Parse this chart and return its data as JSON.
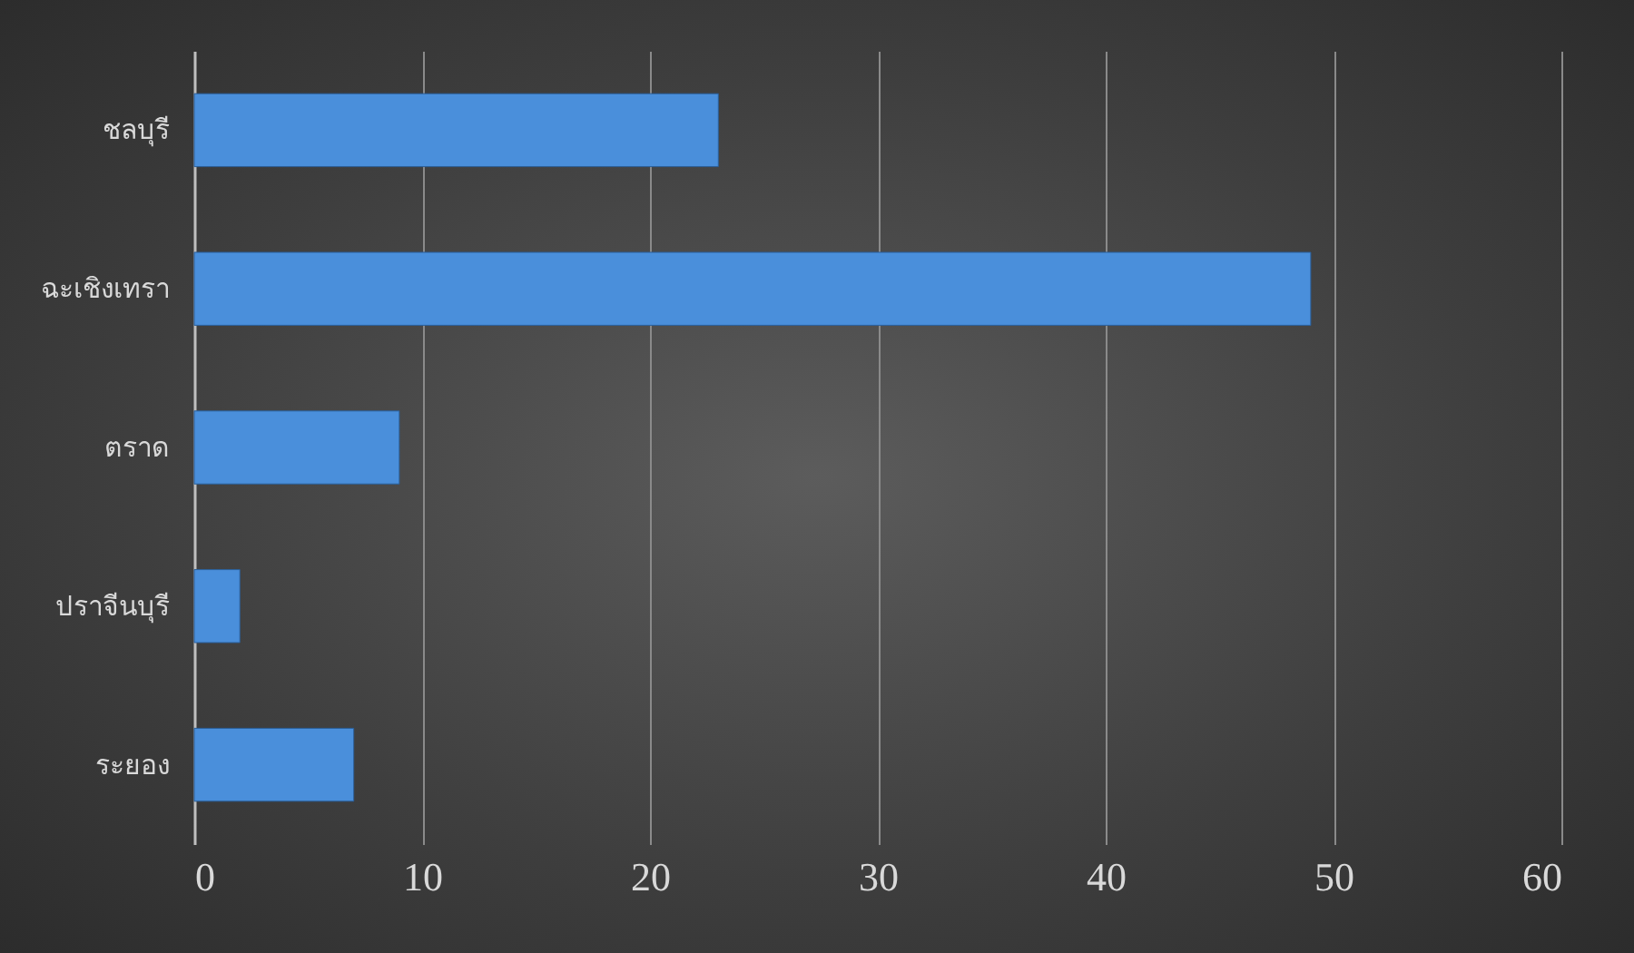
{
  "chart_data": {
    "type": "bar",
    "orientation": "horizontal",
    "categories": [
      "ชลบุรี",
      "ฉะเชิงเทรา",
      "ตราด",
      "ปราจีนบุรี",
      "ระยอง"
    ],
    "values": [
      23,
      49,
      9,
      2,
      7
    ],
    "color": "#4a8fdb",
    "xlim": [
      0,
      60
    ],
    "xticks": [
      0,
      10,
      20,
      30,
      40,
      50,
      60
    ],
    "grid": "x"
  }
}
